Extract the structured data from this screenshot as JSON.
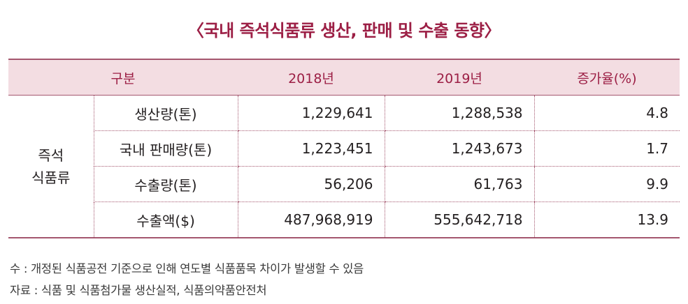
{
  "title": "〈국내 즉석식품류 생산, 판매 및 수출 동향〉",
  "table": {
    "headers": [
      "구분",
      "2018년",
      "2019년",
      "증가율(%)"
    ],
    "group_label_line1": "즉석",
    "group_label_line2": "식품류",
    "rows": [
      {
        "label": "생산량(톤)",
        "y2018": "1,229,641",
        "y2019": "1,288,538",
        "rate": "4.8"
      },
      {
        "label": "국내 판매량(톤)",
        "y2018": "1,223,451",
        "y2019": "1,243,673",
        "rate": "1.7"
      },
      {
        "label": "수출량(톤)",
        "y2018": "56,206",
        "y2019": "61,763",
        "rate": "9.9"
      },
      {
        "label": "수출액($)",
        "y2018": "487,968,919",
        "y2019": "555,642,718",
        "rate": "13.9"
      }
    ]
  },
  "notes": {
    "note": "수 : 개정된 식품공전 기준으로 인해 연도별 식품품목 차이가 발생할 수 있음",
    "source": "자료 : 식품 및 식품첨가물 생산실적, 식품의약품안전처"
  },
  "colors": {
    "title": "#9c1f45",
    "header_bg": "#f3dde2",
    "rule": "#a4566e"
  }
}
